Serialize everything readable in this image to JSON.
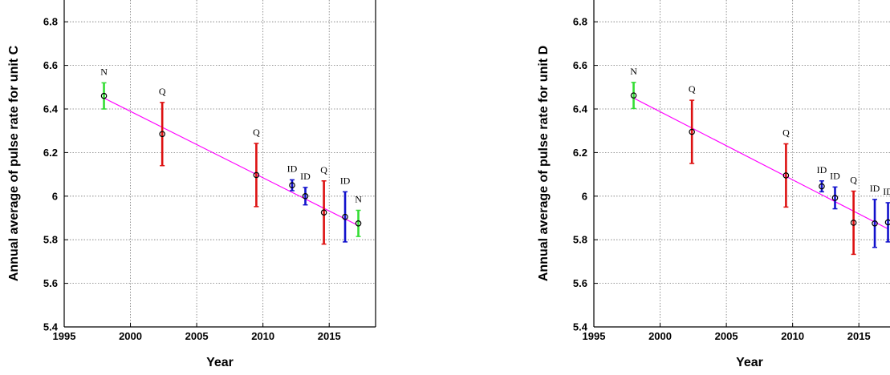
{
  "chart_data": [
    {
      "type": "scatter",
      "xlabel": "Year",
      "ylabel": "Annual average of pulse rate for unit C",
      "xlim": [
        1995,
        2018.5
      ],
      "ylim": [
        5.4,
        6.9
      ],
      "xticks": [
        "1995",
        "2000",
        "2005",
        "2010",
        "2015"
      ],
      "yticks": [
        "5.4",
        "5.6",
        "5.8",
        "6",
        "6.2",
        "6.4",
        "6.6",
        "6.8"
      ],
      "grid": true,
      "fit_line": {
        "x": [
          1998.0,
          2017.2
        ],
        "y": [
          6.45,
          5.865
        ],
        "color": "#ff00ff"
      },
      "points": [
        {
          "x": 1998.0,
          "y": 6.46,
          "err": 0.06,
          "color": "#33dd33",
          "label": "N"
        },
        {
          "x": 2002.4,
          "y": 6.285,
          "err": 0.145,
          "color": "#dd1111",
          "label": "Q"
        },
        {
          "x": 2009.5,
          "y": 6.097,
          "err": 0.145,
          "color": "#dd1111",
          "label": "Q"
        },
        {
          "x": 2012.2,
          "y": 6.05,
          "err": 0.025,
          "color": "#1111cc",
          "label": "ID"
        },
        {
          "x": 2013.2,
          "y": 6.0,
          "err": 0.04,
          "color": "#1111cc",
          "label": "ID"
        },
        {
          "x": 2014.6,
          "y": 5.925,
          "err": 0.145,
          "color": "#dd1111",
          "label": "Q"
        },
        {
          "x": 2016.2,
          "y": 5.905,
          "err": 0.115,
          "color": "#1111cc",
          "label": "ID"
        },
        {
          "x": 2017.2,
          "y": 5.875,
          "err": 0.06,
          "color": "#33dd33",
          "label": "N"
        }
      ]
    },
    {
      "type": "scatter",
      "xlabel": "Year",
      "ylabel": "Annual average of pulse rate for unit D",
      "xlim": [
        1995,
        2018.5
      ],
      "ylim": [
        5.4,
        6.9
      ],
      "xticks": [
        "1995",
        "2000",
        "2005",
        "2010",
        "2015"
      ],
      "yticks": [
        "5.4",
        "5.6",
        "5.8",
        "6",
        "6.2",
        "6.4",
        "6.6",
        "6.8"
      ],
      "grid": true,
      "fit_line": {
        "x": [
          1998.0,
          2017.2
        ],
        "y": [
          6.45,
          5.85
        ],
        "color": "#ff00ff"
      },
      "points": [
        {
          "x": 1998.0,
          "y": 6.462,
          "err": 0.06,
          "color": "#33dd33",
          "label": "N"
        },
        {
          "x": 2002.4,
          "y": 6.295,
          "err": 0.145,
          "color": "#dd1111",
          "label": "Q"
        },
        {
          "x": 2009.5,
          "y": 6.095,
          "err": 0.145,
          "color": "#dd1111",
          "label": "Q"
        },
        {
          "x": 2012.2,
          "y": 6.045,
          "err": 0.025,
          "color": "#1111cc",
          "label": "ID"
        },
        {
          "x": 2013.2,
          "y": 5.992,
          "err": 0.05,
          "color": "#1111cc",
          "label": "ID"
        },
        {
          "x": 2014.6,
          "y": 5.878,
          "err": 0.145,
          "color": "#dd1111",
          "label": "Q"
        },
        {
          "x": 2016.2,
          "y": 5.875,
          "err": 0.11,
          "color": "#1111cc",
          "label": "ID"
        },
        {
          "x": 2017.2,
          "y": 5.88,
          "err": 0.09,
          "color": "#1111cc",
          "label": "ID"
        }
      ]
    }
  ]
}
